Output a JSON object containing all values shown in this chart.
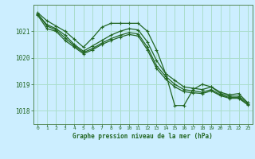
{
  "title": "Graphe pression niveau de la mer (hPa)",
  "background_color": "#cceeff",
  "grid_color": "#aaddcc",
  "line_color": "#226622",
  "xlim": [
    -0.5,
    23.5
  ],
  "ylim": [
    1017.5,
    1022.0
  ],
  "yticks": [
    1018,
    1019,
    1020,
    1021
  ],
  "xticks": [
    0,
    1,
    2,
    3,
    4,
    5,
    6,
    7,
    8,
    9,
    10,
    11,
    12,
    13,
    14,
    15,
    16,
    17,
    18,
    19,
    20,
    21,
    22,
    23
  ],
  "series": {
    "line1": [
      1021.7,
      1021.4,
      1021.2,
      1021.0,
      1020.7,
      1020.4,
      1020.75,
      1021.15,
      1021.3,
      1021.3,
      1021.3,
      1021.3,
      1021.0,
      1020.3,
      1019.4,
      1018.2,
      1018.2,
      1018.8,
      1019.0,
      1018.9,
      1018.7,
      1018.6,
      1018.65,
      1018.3
    ],
    "line2": [
      1021.65,
      1021.25,
      1021.1,
      1020.85,
      1020.5,
      1020.25,
      1020.45,
      1020.65,
      1020.85,
      1021.0,
      1021.1,
      1021.05,
      1020.6,
      1019.9,
      1019.4,
      1019.15,
      1018.9,
      1018.85,
      1018.8,
      1018.9,
      1018.65,
      1018.55,
      1018.55,
      1018.3
    ],
    "line3": [
      1021.65,
      1021.2,
      1021.05,
      1020.75,
      1020.45,
      1020.2,
      1020.35,
      1020.55,
      1020.72,
      1020.85,
      1020.95,
      1020.9,
      1020.4,
      1019.7,
      1019.3,
      1019.0,
      1018.8,
      1018.75,
      1018.7,
      1018.8,
      1018.6,
      1018.5,
      1018.5,
      1018.25
    ],
    "line4": [
      1021.6,
      1021.1,
      1021.0,
      1020.65,
      1020.4,
      1020.15,
      1020.3,
      1020.5,
      1020.65,
      1020.78,
      1020.88,
      1020.82,
      1020.3,
      1019.6,
      1019.2,
      1018.9,
      1018.72,
      1018.68,
      1018.65,
      1018.75,
      1018.57,
      1018.47,
      1018.47,
      1018.22
    ]
  }
}
